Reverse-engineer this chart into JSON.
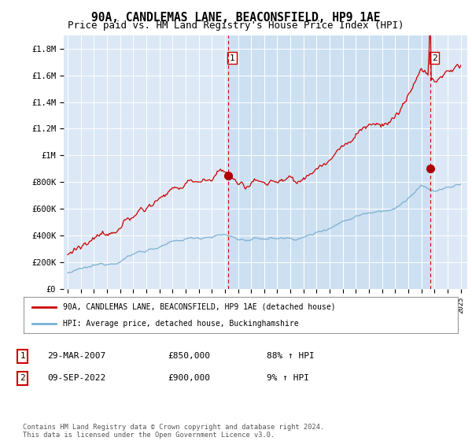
{
  "title": "90A, CANDLEMAS LANE, BEACONSFIELD, HP9 1AE",
  "subtitle": "Price paid vs. HM Land Registry's House Price Index (HPI)",
  "plot_bg_color": "#dce8f5",
  "shade_color": "#c8ddf0",
  "ylim": [
    0,
    1900000
  ],
  "yticks": [
    0,
    200000,
    400000,
    600000,
    800000,
    1000000,
    1200000,
    1400000,
    1600000,
    1800000
  ],
  "ytick_labels": [
    "£0",
    "£200K",
    "£400K",
    "£600K",
    "£800K",
    "£1M",
    "£1.2M",
    "£1.4M",
    "£1.6M",
    "£1.8M"
  ],
  "xlim_start": 1994.7,
  "xlim_end": 2025.5,
  "xticks": [
    1995,
    1996,
    1997,
    1998,
    1999,
    2000,
    2001,
    2002,
    2003,
    2004,
    2005,
    2006,
    2007,
    2008,
    2009,
    2010,
    2011,
    2012,
    2013,
    2014,
    2015,
    2016,
    2017,
    2018,
    2019,
    2020,
    2021,
    2022,
    2023,
    2024,
    2025
  ],
  "vline1_x": 2007.23,
  "vline2_x": 2022.69,
  "marker1_x": 2007.23,
  "marker1_y": 850000,
  "marker2_x": 2022.69,
  "marker2_y": 900000,
  "marker_color": "#aa0000",
  "red_line_color": "#cc0000",
  "blue_line_color": "#7ab0d4",
  "legend_label_red": "90A, CANDLEMAS LANE, BEACONSFIELD, HP9 1AE (detached house)",
  "legend_label_blue": "HPI: Average price, detached house, Buckinghamshire",
  "annotation1_label": "1",
  "annotation2_label": "2",
  "table_rows": [
    {
      "num": "1",
      "date": "29-MAR-2007",
      "price": "£850,000",
      "hpi": "88% ↑ HPI"
    },
    {
      "num": "2",
      "date": "09-SEP-2022",
      "price": "£900,000",
      "hpi": "9% ↑ HPI"
    }
  ],
  "footer": "Contains HM Land Registry data © Crown copyright and database right 2024.\nThis data is licensed under the Open Government Licence v3.0.",
  "title_fontsize": 10.5,
  "subtitle_fontsize": 9.0
}
